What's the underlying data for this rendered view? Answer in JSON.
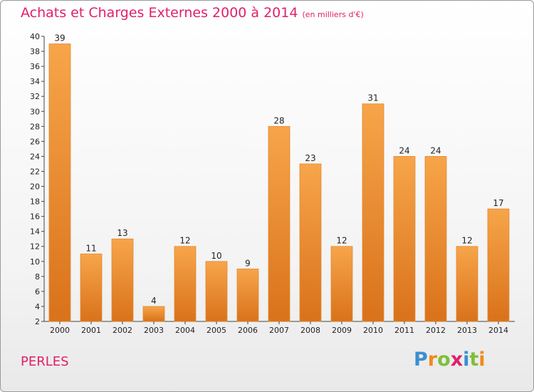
{
  "title": "Achats et Charges Externes 2000 à 2014",
  "subtitle": "(en milliers d'€)",
  "place": "PERLES",
  "logo_text": "Proxiti",
  "colors": {
    "bar_light": "#f7a54a",
    "bar_dark": "#d9721a",
    "title": "#e0206a"
  },
  "chart_data": {
    "type": "bar",
    "title": "Achats et Charges Externes 2000 à 2014",
    "subtitle": "(en milliers d'€)",
    "xlabel": "",
    "ylabel": "",
    "categories": [
      "2000",
      "2001",
      "2002",
      "2003",
      "2004",
      "2005",
      "2006",
      "2007",
      "2008",
      "2009",
      "2010",
      "2011",
      "2012",
      "2013",
      "2014"
    ],
    "values": [
      39,
      11,
      13,
      4,
      12,
      10,
      9,
      28,
      23,
      12,
      31,
      24,
      24,
      12,
      17
    ],
    "ylim": [
      2,
      40
    ],
    "yticks": [
      2,
      4,
      6,
      8,
      10,
      12,
      14,
      16,
      18,
      20,
      22,
      24,
      26,
      28,
      30,
      32,
      34,
      36,
      38,
      40
    ],
    "grid": false,
    "legend": "none"
  }
}
